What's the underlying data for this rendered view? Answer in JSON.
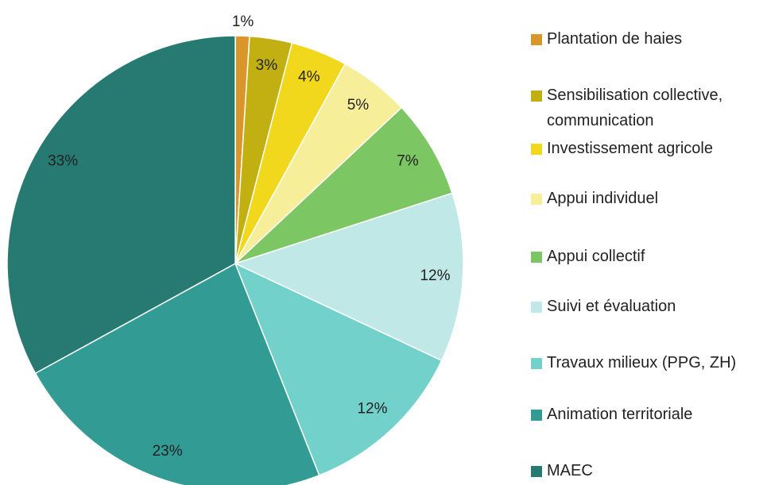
{
  "chart_data": {
    "type": "pie",
    "categories": [
      "Plantation de haies",
      "Sensibilisation collective, communication",
      "Investissement agricole",
      "Appui individuel",
      "Appui collectif",
      "Suivi et évaluation",
      "Travaux milieux (PPG, ZH)",
      "Animation territoriale",
      "MAEC"
    ],
    "values": [
      1,
      3,
      4,
      5,
      7,
      12,
      12,
      23,
      33
    ],
    "value_labels": [
      "1%",
      "3%",
      "4%",
      "5%",
      "7%",
      "12%",
      "12%",
      "23%",
      "33%"
    ],
    "colors": [
      "#d9962a",
      "#c2b012",
      "#f2d81c",
      "#f7ee9a",
      "#7cc663",
      "#bfe8e6",
      "#72d1ca",
      "#329b93",
      "#267a72"
    ],
    "legend": "right"
  }
}
